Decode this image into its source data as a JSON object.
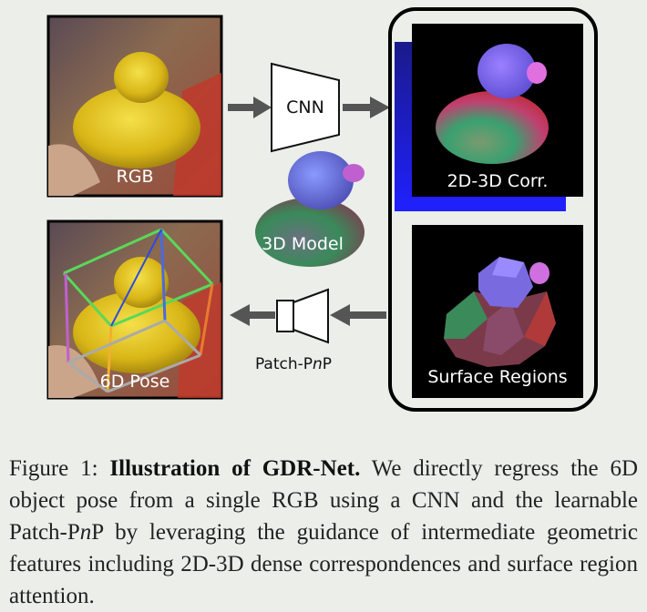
{
  "figure": {
    "rgb_label": "RGB",
    "cnn_label": "CNN",
    "model_label": "3D Model",
    "corr_label": "2D-3D Corr.",
    "regions_label": "Surface Regions",
    "pose_label": "6D Pose",
    "pnp_prefix": "Patch-P",
    "pnp_italic": "n",
    "pnp_suffix": "P"
  },
  "caption": {
    "prefix": "Figure 1: ",
    "bold": "Illustration of GDR-Net.",
    "body_1": " We directly regress the 6D object pose from a single RGB using a CNN and the learnable Patch-P",
    "italic_n": "n",
    "body_2": "P by leveraging the guidance of intermediate geometric features including 2D-3D dense correspondences and surface region attention."
  }
}
